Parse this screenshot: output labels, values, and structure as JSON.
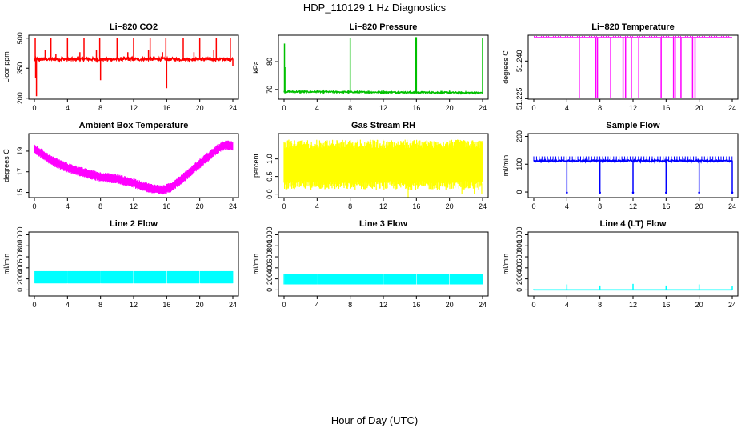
{
  "figure": {
    "title": "HDP_110129  1 Hz Diagnostics",
    "xlabel": "Hour of Day (UTC)"
  },
  "chart_data": [
    {
      "type": "line",
      "title": "Li−820 CO2",
      "ylabel": "Licor ppm",
      "color": "#ff0000",
      "xlim": [
        0,
        24
      ],
      "xticks": [
        0,
        4,
        8,
        12,
        16,
        20,
        24
      ],
      "ylim": [
        195,
        515
      ],
      "yticks": [
        200,
        350,
        500
      ],
      "series": [
        {
          "baseline": 395,
          "noise": 8,
          "spikes": [
            [
              0.1,
              500
            ],
            [
              0.15,
              300
            ],
            [
              0.25,
              210
            ],
            [
              1.3,
              440
            ],
            [
              2.0,
              500
            ],
            [
              2.6,
              420
            ],
            [
              4.0,
              500
            ],
            [
              5.5,
              430
            ],
            [
              6.0,
              500
            ],
            [
              7.5,
              440
            ],
            [
              7.9,
              500
            ],
            [
              8.0,
              290
            ],
            [
              10.0,
              500
            ],
            [
              11.3,
              430
            ],
            [
              12.0,
              500
            ],
            [
              13.8,
              440
            ],
            [
              14.0,
              500
            ],
            [
              15.5,
              430
            ],
            [
              15.9,
              500
            ],
            [
              16.0,
              250
            ],
            [
              18.0,
              500
            ],
            [
              19.3,
              430
            ],
            [
              20.0,
              500
            ],
            [
              21.7,
              440
            ],
            [
              22.0,
              500
            ],
            [
              23.7,
              500
            ],
            [
              24.0,
              360
            ]
          ]
        }
      ]
    },
    {
      "type": "line",
      "title": "Li−820 Pressure",
      "ylabel": "kPa",
      "color": "#00c000",
      "xlim": [
        0,
        24
      ],
      "xticks": [
        0,
        4,
        8,
        12,
        16,
        20,
        24
      ],
      "ylim": [
        66.5,
        89.5
      ],
      "yticks": [
        70,
        80
      ],
      "series": [
        {
          "baseline": [
            [
              0,
              69.2
            ],
            [
              24,
              68.8
            ]
          ],
          "noise": 0.25,
          "spikes": [
            [
              0.05,
              86.5
            ],
            [
              0.2,
              78.0
            ],
            [
              4.0,
              69.9
            ],
            [
              8.0,
              88.5
            ],
            [
              12.0,
              69.8
            ],
            [
              15.9,
              88.8
            ],
            [
              16.0,
              88.8
            ],
            [
              20.0,
              69.6
            ],
            [
              24.0,
              88.6
            ]
          ]
        }
      ]
    },
    {
      "type": "line",
      "title": "Li−820 Temperature",
      "ylabel": "degrees C",
      "color": "#ff00ff",
      "xlim": [
        0,
        24
      ],
      "xticks": [
        0,
        4,
        8,
        12,
        16,
        20,
        24
      ],
      "ylim": [
        51.2248,
        51.2503
      ],
      "yticks": [
        51.225,
        51.24
      ],
      "series": [
        {
          "baseline": 51.2495,
          "noise": 0,
          "spikes": [
            [
              5.5,
              51.225
            ],
            [
              7.5,
              51.225
            ],
            [
              7.7,
              51.225
            ],
            [
              9.3,
              51.225
            ],
            [
              10.8,
              51.225
            ],
            [
              11.1,
              51.225
            ],
            [
              11.8,
              51.225
            ],
            [
              12.7,
              51.225
            ],
            [
              15.4,
              51.225
            ],
            [
              16.9,
              51.225
            ],
            [
              17.1,
              51.225
            ],
            [
              17.8,
              51.225
            ],
            [
              19.2,
              51.225
            ],
            [
              19.5,
              51.225
            ]
          ]
        }
      ]
    },
    {
      "type": "area",
      "title": "Ambient Box Temperature",
      "ylabel": "degrees C",
      "color": "#ff00ff",
      "xlim": [
        0,
        24
      ],
      "xticks": [
        0,
        4,
        8,
        12,
        16,
        20,
        24
      ],
      "ylim": [
        14.5,
        20.7
      ],
      "yticks": [
        15,
        17,
        19
      ],
      "series": [
        {
          "band": 0.55,
          "noise": 0.2,
          "points": [
            [
              0,
              19.2
            ],
            [
              1,
              18.7
            ],
            [
              2,
              18.1
            ],
            [
              4,
              17.4
            ],
            [
              6,
              16.9
            ],
            [
              8,
              16.5
            ],
            [
              10,
              16.3
            ],
            [
              12,
              15.9
            ],
            [
              14,
              15.4
            ],
            [
              15.5,
              15.2
            ],
            [
              16.5,
              15.5
            ],
            [
              18,
              16.4
            ],
            [
              20,
              17.8
            ],
            [
              22,
              19.1
            ],
            [
              23,
              19.6
            ],
            [
              24,
              19.5
            ]
          ]
        }
      ]
    },
    {
      "type": "area",
      "title": "Gas Stream RH",
      "ylabel": "percent",
      "color": "#ffff00",
      "xlim": [
        0,
        24
      ],
      "xticks": [
        0,
        4,
        8,
        12,
        16,
        20,
        24
      ],
      "ylim": [
        -0.1,
        1.72
      ],
      "yticks": [
        0.0,
        0.5,
        1.0
      ],
      "series": [
        {
          "low": 0.3,
          "high": 1.5,
          "outliers": [
            [
              21.5,
              0.0
            ],
            [
              23.0,
              0.0
            ],
            [
              23.9,
              0.0
            ],
            [
              15.0,
              -0.1
            ]
          ]
        }
      ]
    },
    {
      "type": "line",
      "title": "Sample Flow",
      "ylabel": "ml/min",
      "color": "#0000ff",
      "xlim": [
        0,
        24
      ],
      "xticks": [
        0,
        4,
        8,
        12,
        16,
        20,
        24
      ],
      "ylim": [
        -20,
        210
      ],
      "yticks": [
        0,
        100,
        200
      ],
      "series": [
        {
          "baseline": 112,
          "noise": 3,
          "tickEvery": 0.333,
          "tickHigh": 128,
          "dips": [
            [
              4.0,
              -2
            ],
            [
              8.0,
              -2
            ],
            [
              12.0,
              -2
            ],
            [
              16.0,
              -2
            ],
            [
              20.0,
              -2
            ],
            [
              24.0,
              -2
            ]
          ]
        }
      ]
    },
    {
      "type": "area",
      "title": "Line 2 Flow",
      "ylabel": "ml/min",
      "color": "#00ffff",
      "xlim": [
        0,
        24
      ],
      "xticks": [
        0,
        4,
        8,
        12,
        16,
        20,
        24
      ],
      "ylim": [
        -110,
        1050
      ],
      "yticks": [
        0,
        200,
        400,
        600,
        800,
        1000
      ],
      "series": [
        {
          "low": 120,
          "high": 340,
          "gapEvery": 4
        }
      ]
    },
    {
      "type": "area",
      "title": "Line 3 Flow",
      "ylabel": "ml/min",
      "color": "#00ffff",
      "xlim": [
        0,
        24
      ],
      "xticks": [
        0,
        4,
        8,
        12,
        16,
        20,
        24
      ],
      "ylim": [
        -110,
        1050
      ],
      "yticks": [
        0,
        200,
        400,
        600,
        800,
        1000
      ],
      "series": [
        {
          "low": 100,
          "high": 290,
          "gapEvery": 4
        }
      ]
    },
    {
      "type": "line",
      "title": "Line 4 (LT) Flow",
      "ylabel": "ml/min",
      "color": "#00ffff",
      "xlim": [
        0,
        24
      ],
      "xticks": [
        0,
        4,
        8,
        12,
        16,
        20,
        24
      ],
      "ylim": [
        -110,
        1050
      ],
      "yticks": [
        0,
        200,
        400,
        600,
        800,
        1000
      ],
      "series": [
        {
          "baseline": 2,
          "noise": 0,
          "spikes": [
            [
              0.0,
              15
            ],
            [
              4.0,
              100
            ],
            [
              8.0,
              80
            ],
            [
              12.0,
              110
            ],
            [
              16.0,
              80
            ],
            [
              20.0,
              100
            ],
            [
              24.0,
              70
            ]
          ]
        }
      ]
    }
  ]
}
